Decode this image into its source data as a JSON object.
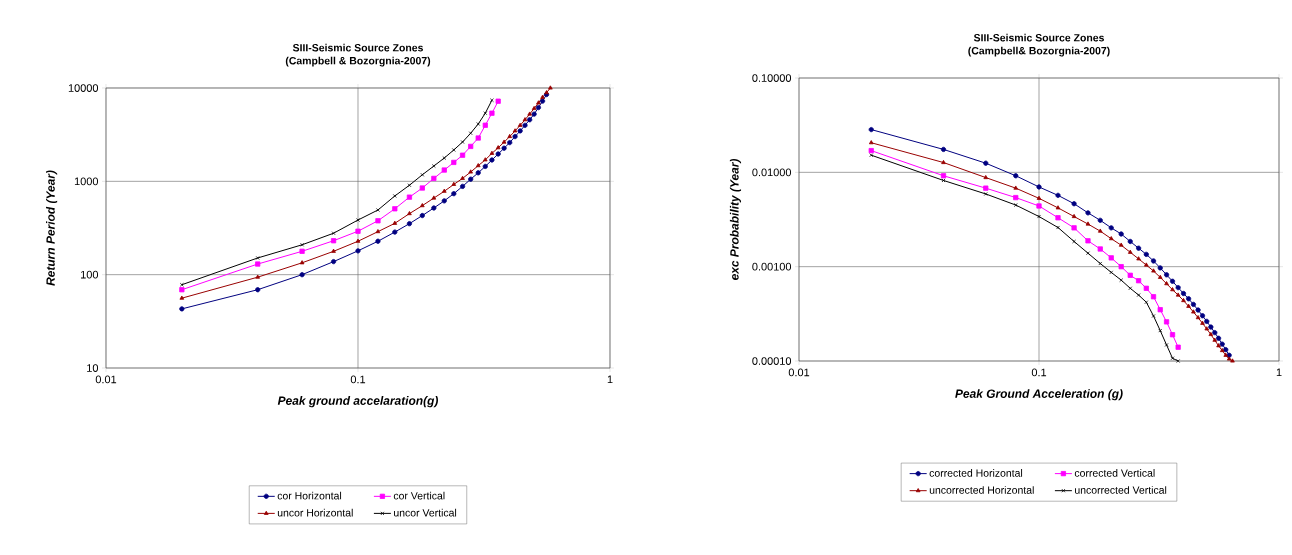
{
  "chart_data": [
    {
      "type": "line",
      "title": "SIII-Seismic Source Zones",
      "subtitle": "(Campbell & Bozorgnia-2007)",
      "xlabel": "Peak ground accelaration(g)",
      "ylabel": "Return Period (Year)",
      "log": "xy",
      "xlim": [
        0.01,
        1
      ],
      "ylim": [
        10,
        10000
      ],
      "xticks": [
        0.01,
        0.1,
        1
      ],
      "yticks": [
        10,
        100,
        1000,
        10000
      ],
      "grid": true,
      "legend": "bottom",
      "line_style": "solid",
      "series": [
        {
          "name": "cor Horizontal",
          "color": "#000080",
          "marker": "circle",
          "x": [
            0.02,
            0.04,
            0.06,
            0.08,
            0.1,
            0.12,
            0.14,
            0.16,
            0.18,
            0.2,
            0.22,
            0.24,
            0.26,
            0.28,
            0.3,
            0.32,
            0.34,
            0.36,
            0.38,
            0.4,
            0.42,
            0.44,
            0.46,
            0.48,
            0.5,
            0.52,
            0.54,
            0.56
          ],
          "values": [
            43,
            69,
            100,
            138,
            180,
            228,
            286,
            352,
            430,
            518,
            618,
            738,
            883,
            1054,
            1234,
            1445,
            1693,
            1964,
            2265,
            2600,
            3020,
            3470,
            3980,
            4570,
            5250,
            6170,
            7240,
            8510
          ]
        },
        {
          "name": "cor Vertical",
          "color": "#ff00ff",
          "marker": "square",
          "x": [
            0.02,
            0.04,
            0.06,
            0.08,
            0.1,
            0.12,
            0.14,
            0.16,
            0.18,
            0.2,
            0.22,
            0.24,
            0.26,
            0.28,
            0.3,
            0.32,
            0.34,
            0.36
          ],
          "values": [
            69,
            130,
            178,
            231,
            292,
            378,
            508,
            677,
            848,
            1075,
            1321,
            1595,
            1905,
            2366,
            2911,
            3990,
            5370,
            7220
          ]
        },
        {
          "name": "uncor Horizontal",
          "color": "#990000",
          "marker": "triangle",
          "x": [
            0.02,
            0.04,
            0.06,
            0.08,
            0.1,
            0.12,
            0.14,
            0.16,
            0.18,
            0.2,
            0.22,
            0.24,
            0.26,
            0.28,
            0.3,
            0.32,
            0.34,
            0.36,
            0.38,
            0.4,
            0.42,
            0.44,
            0.46,
            0.48,
            0.5,
            0.52,
            0.54,
            0.56,
            0.58
          ],
          "values": [
            56,
            94,
            134,
            178,
            228,
            289,
            355,
            451,
            549,
            662,
            783,
            927,
            1075,
            1259,
            1472,
            1698,
            1995,
            2290,
            2630,
            3020,
            3470,
            3980,
            4570,
            5250,
            6030,
            6920,
            7940,
            8910,
            10000
          ]
        },
        {
          "name": "uncor Vertical",
          "color": "#000000",
          "marker": "cross",
          "x": [
            0.02,
            0.04,
            0.06,
            0.08,
            0.1,
            0.12,
            0.14,
            0.16,
            0.18,
            0.2,
            0.22,
            0.24,
            0.26,
            0.28,
            0.3,
            0.32,
            0.34
          ],
          "values": [
            78,
            151,
            209,
            278,
            385,
            493,
            697,
            908,
            1175,
            1459,
            1778,
            2168,
            2638,
            3278,
            4113,
            5370,
            7400
          ]
        }
      ]
    },
    {
      "type": "line",
      "title": "SIII-Seismic Source Zones",
      "subtitle": "(Campbell& Bozorgnia-2007)",
      "xlabel": "Peak Ground Acceleration (g)",
      "ylabel": "exc Probability (Year)",
      "log": "xy",
      "xlim": [
        0.01,
        1
      ],
      "ylim": [
        0.0001,
        0.1
      ],
      "xticks": [
        0.01,
        0.1,
        1
      ],
      "yticks": [
        {
          "value": 0.0001,
          "label": "0.00010"
        },
        {
          "value": 0.001,
          "label": "0.00100"
        },
        {
          "value": 0.01,
          "label": "0.01000"
        },
        {
          "value": 0.1,
          "label": "0.10000"
        }
      ],
      "grid": true,
      "legend": "bottom",
      "line_style": "solid",
      "series": [
        {
          "name": "corrected Horizontal",
          "color": "#000080",
          "marker": "circle",
          "x": [
            0.02,
            0.04,
            0.06,
            0.08,
            0.1,
            0.12,
            0.14,
            0.16,
            0.18,
            0.2,
            0.22,
            0.24,
            0.26,
            0.28,
            0.3,
            0.32,
            0.34,
            0.36,
            0.38,
            0.4,
            0.42,
            0.44,
            0.46,
            0.48,
            0.5,
            0.52,
            0.54,
            0.56,
            0.58,
            0.6,
            0.62
          ],
          "values": [
            0.0284,
            0.0175,
            0.0125,
            0.0092,
            0.007,
            0.0057,
            0.00465,
            0.00372,
            0.0031,
            0.00258,
            0.00222,
            0.00185,
            0.00157,
            0.00135,
            0.00115,
            0.00097,
            0.00082,
            0.0007,
            0.0006,
            0.00052,
            0.000457,
            0.000398,
            0.000347,
            0.000302,
            0.000263,
            0.000229,
            0.0002,
            0.000174,
            0.000151,
            0.000132,
            0.000115
          ]
        },
        {
          "name": "corrected Vertical",
          "color": "#ff00ff",
          "marker": "square",
          "x": [
            0.02,
            0.04,
            0.06,
            0.08,
            0.1,
            0.12,
            0.14,
            0.16,
            0.18,
            0.2,
            0.22,
            0.24,
            0.26,
            0.28,
            0.3,
            0.32,
            0.34,
            0.36,
            0.38
          ],
          "values": [
            0.017,
            0.0092,
            0.0068,
            0.0054,
            0.0044,
            0.0033,
            0.00258,
            0.00188,
            0.00154,
            0.00124,
            0.001,
            0.00081,
            0.00071,
            0.00059,
            0.00048,
            0.00035,
            0.00026,
            0.00019,
            0.00014
          ]
        },
        {
          "name": "uncorrected Horizontal",
          "color": "#990000",
          "marker": "triangle",
          "x": [
            0.02,
            0.04,
            0.06,
            0.08,
            0.1,
            0.12,
            0.14,
            0.16,
            0.18,
            0.2,
            0.22,
            0.24,
            0.26,
            0.28,
            0.3,
            0.32,
            0.34,
            0.36,
            0.38,
            0.4,
            0.42,
            0.44,
            0.46,
            0.48,
            0.5,
            0.52,
            0.54,
            0.56,
            0.58,
            0.6,
            0.62,
            0.64
          ],
          "values": [
            0.0206,
            0.0127,
            0.0088,
            0.0068,
            0.0053,
            0.0042,
            0.0034,
            0.00283,
            0.00238,
            0.00198,
            0.00169,
            0.00142,
            0.00121,
            0.00104,
            0.0009,
            0.00077,
            0.00066,
            0.00057,
            0.0005,
            0.000437,
            0.00038,
            0.000331,
            0.000288,
            0.000251,
            0.000219,
            0.000191,
            0.000166,
            0.000145,
            0.000129,
            0.000115,
            0.000105,
            0.0001
          ]
        },
        {
          "name": "uncorrected Vertical",
          "color": "#000000",
          "marker": "cross",
          "x": [
            0.02,
            0.04,
            0.06,
            0.08,
            0.1,
            0.12,
            0.14,
            0.16,
            0.18,
            0.2,
            0.22,
            0.24,
            0.26,
            0.28,
            0.3,
            0.32,
            0.34,
            0.36,
            0.38
          ],
          "values": [
            0.0152,
            0.0082,
            0.0059,
            0.0045,
            0.0034,
            0.0026,
            0.00185,
            0.00139,
            0.00108,
            0.00087,
            0.00072,
            0.00059,
            0.0005,
            0.00042,
            0.0003,
            0.00021,
            0.000148,
            0.000107,
            0.0001
          ]
        }
      ]
    }
  ]
}
